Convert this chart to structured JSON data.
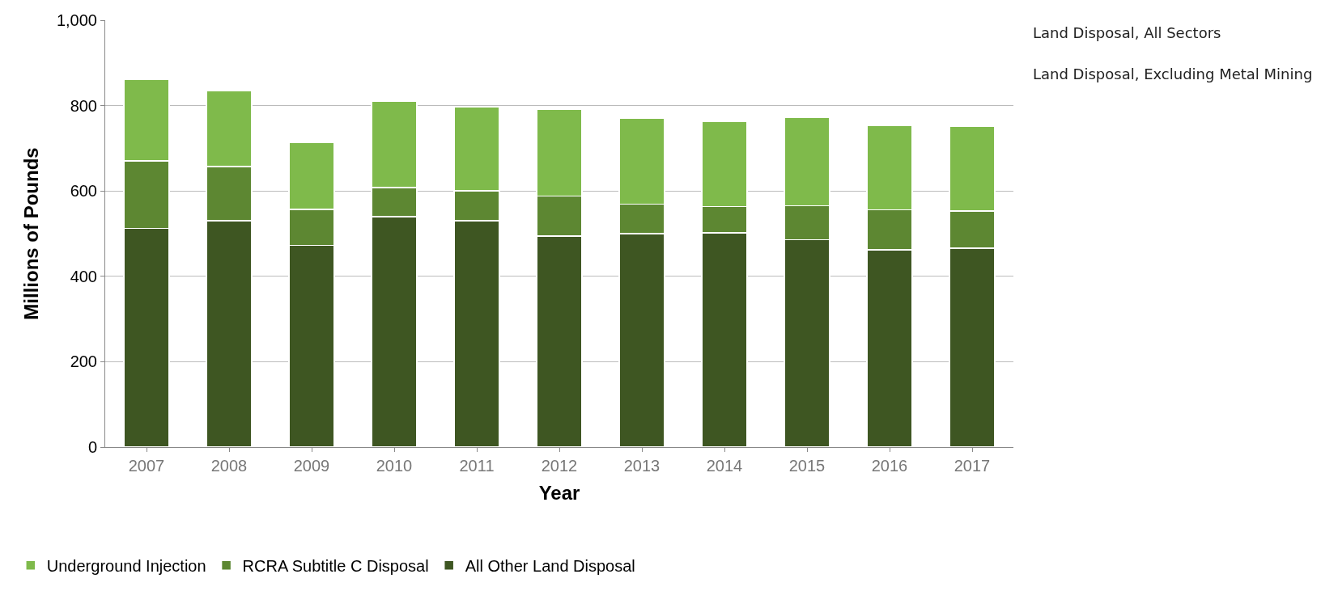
{
  "chart_data": {
    "type": "bar",
    "stacked": true,
    "xlabel": "Year",
    "ylabel": "Millions of Pounds",
    "categories": [
      "2007",
      "2008",
      "2009",
      "2010",
      "2011",
      "2012",
      "2013",
      "2014",
      "2015",
      "2016",
      "2017"
    ],
    "series": [
      {
        "name": "All Other Land Disposal",
        "color": "#3e5622",
        "values": [
          512,
          530,
          473,
          540,
          530,
          494,
          500,
          502,
          486,
          462,
          466
        ]
      },
      {
        "name": "RCRA Subtitle C Disposal",
        "color": "#5d8732",
        "values": [
          158,
          127,
          84,
          68,
          70,
          94,
          69,
          61,
          79,
          94,
          87
        ]
      },
      {
        "name": "Underground Injection",
        "color": "#7fba4b",
        "values": [
          192,
          178,
          156,
          203,
          197,
          204,
          201,
          200,
          207,
          197,
          198
        ]
      }
    ],
    "ylim": [
      0,
      1000
    ],
    "yticks": [
      0,
      200,
      400,
      600,
      800,
      {
        "value": 1000,
        "label": "1,000"
      }
    ],
    "grid": "y",
    "legend": "bottom",
    "annotations": [
      "Land Disposal, All Sectors",
      "Land Disposal, Excluding Metal Mining"
    ]
  }
}
